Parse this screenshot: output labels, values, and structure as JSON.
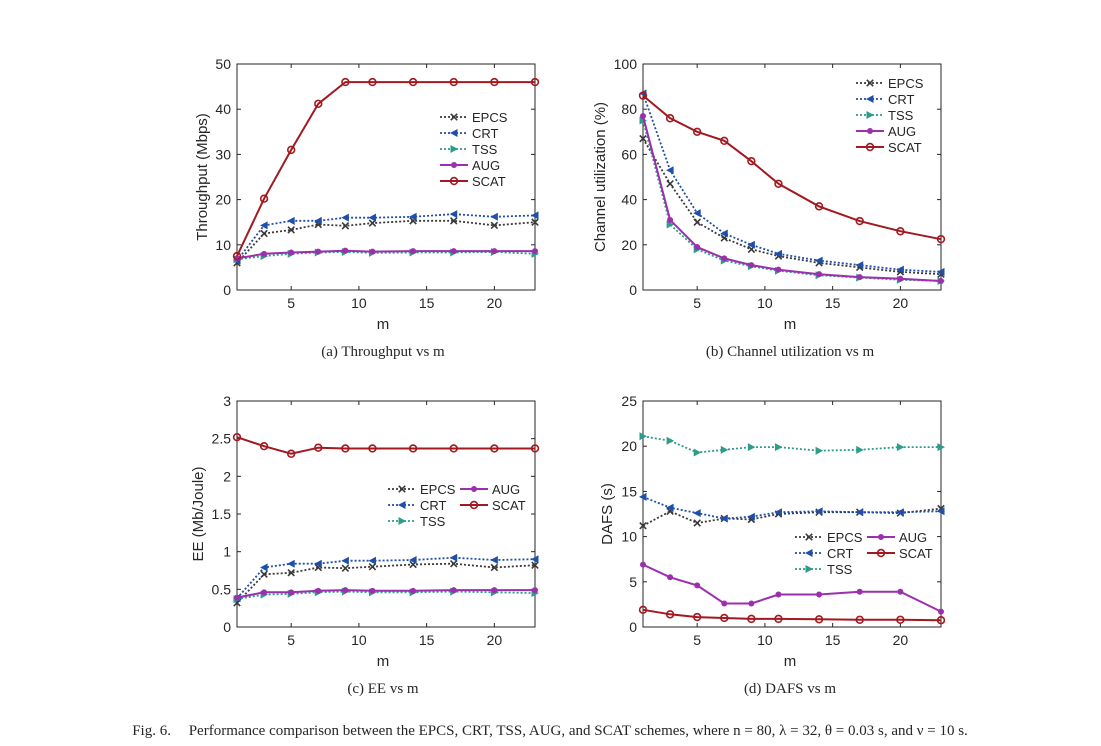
{
  "figure": {
    "caption_label": "Fig. 6.",
    "caption_text": "Performance comparison between the EPCS, CRT, TSS, AUG, and SCAT schemes, where n = 80, λ = 32, θ = 0.03 s, and ν = 10 s."
  },
  "series_styles": {
    "EPCS": {
      "color": "#3a3a3a",
      "dash": "dot",
      "marker": "x"
    },
    "CRT": {
      "color": "#1f4fa8",
      "dash": "dot",
      "marker": "tri-left"
    },
    "TSS": {
      "color": "#2e9c8a",
      "dash": "dot",
      "marker": "tri-right"
    },
    "AUG": {
      "color": "#9b2fae",
      "dash": "solid",
      "marker": "dot"
    },
    "SCAT": {
      "color": "#a2191f",
      "dash": "solid",
      "marker": "circle"
    }
  },
  "chart_data": [
    {
      "id": "a",
      "type": "line",
      "caption": "(a) Throughput vs m",
      "xlabel": "m",
      "ylabel": "Throughput (Mbps)",
      "xlim": [
        1,
        23
      ],
      "ylim": [
        0,
        50
      ],
      "xticks": [
        5,
        10,
        15,
        20
      ],
      "yticks": [
        0,
        10,
        20,
        30,
        40,
        50
      ],
      "ytick_labels": [
        "0",
        "10",
        "20",
        "30",
        "40",
        "50"
      ],
      "legend_layout": "single-column",
      "legend_position": "center-right",
      "x": [
        1,
        3,
        5,
        7,
        9,
        11,
        14,
        17,
        20,
        23
      ],
      "series": [
        {
          "name": "EPCS",
          "values": [
            6.0,
            12.5,
            13.3,
            14.5,
            14.2,
            14.8,
            15.3,
            15.3,
            14.3,
            15.0
          ]
        },
        {
          "name": "CRT",
          "values": [
            6.5,
            14.3,
            15.3,
            15.3,
            16.0,
            16.0,
            16.2,
            16.8,
            16.2,
            16.5
          ]
        },
        {
          "name": "TSS",
          "values": [
            6.8,
            7.5,
            8.0,
            8.3,
            8.4,
            8.2,
            8.3,
            8.3,
            8.4,
            8.0
          ]
        },
        {
          "name": "AUG",
          "values": [
            7.0,
            8.0,
            8.3,
            8.5,
            8.7,
            8.5,
            8.6,
            8.6,
            8.6,
            8.6
          ]
        },
        {
          "name": "SCAT",
          "values": [
            7.5,
            20.2,
            31.0,
            41.2,
            46.0,
            46.0,
            46.0,
            46.0,
            46.0,
            46.0
          ]
        }
      ]
    },
    {
      "id": "b",
      "type": "line",
      "caption": "(b) Channel utilization vs m",
      "xlabel": "m",
      "ylabel": "Channel utilization (%)",
      "xlim": [
        1,
        23
      ],
      "ylim": [
        0,
        100
      ],
      "xticks": [
        5,
        10,
        15,
        20
      ],
      "yticks": [
        0,
        20,
        40,
        60,
        80,
        100
      ],
      "ytick_labels": [
        "0",
        "20",
        "40",
        "60",
        "80",
        "100"
      ],
      "legend_layout": "single-column",
      "legend_position": "top-right",
      "x": [
        1,
        3,
        5,
        7,
        9,
        11,
        14,
        17,
        20,
        23
      ],
      "series": [
        {
          "name": "EPCS",
          "values": [
            67,
            47,
            30,
            23,
            18,
            15,
            12,
            10,
            8,
            7
          ]
        },
        {
          "name": "CRT",
          "values": [
            87,
            53,
            34,
            25,
            20,
            16,
            13,
            11,
            9,
            8
          ]
        },
        {
          "name": "TSS",
          "values": [
            75,
            29,
            18,
            13,
            10.5,
            8.5,
            6.5,
            5.5,
            4.5,
            4
          ]
        },
        {
          "name": "AUG",
          "values": [
            77,
            31,
            19,
            14,
            11,
            9,
            7,
            5.7,
            5,
            4
          ]
        },
        {
          "name": "SCAT",
          "values": [
            86,
            76,
            70,
            66,
            57,
            47,
            37,
            30.5,
            26,
            22.5
          ]
        }
      ]
    },
    {
      "id": "c",
      "type": "line",
      "caption": "(c) EE vs m",
      "xlabel": "m",
      "ylabel": "EE (Mb/Joule)",
      "xlim": [
        1,
        23
      ],
      "ylim": [
        0,
        3
      ],
      "xticks": [
        5,
        10,
        15,
        20
      ],
      "yticks": [
        0,
        0.5,
        1,
        1.5,
        2,
        2.5,
        3
      ],
      "ytick_labels": [
        "0",
        "0.5",
        "1",
        "1.5",
        "2",
        "2.5",
        "3"
      ],
      "legend_layout": "two-column",
      "legend_position": "center-right",
      "x": [
        1,
        3,
        5,
        7,
        9,
        11,
        14,
        17,
        20,
        23
      ],
      "series": [
        {
          "name": "EPCS",
          "values": [
            0.32,
            0.7,
            0.72,
            0.79,
            0.78,
            0.8,
            0.83,
            0.84,
            0.79,
            0.82
          ]
        },
        {
          "name": "CRT",
          "values": [
            0.38,
            0.79,
            0.84,
            0.84,
            0.88,
            0.88,
            0.89,
            0.92,
            0.89,
            0.9
          ]
        },
        {
          "name": "TSS",
          "values": [
            0.37,
            0.43,
            0.44,
            0.46,
            0.47,
            0.46,
            0.46,
            0.47,
            0.46,
            0.45
          ]
        },
        {
          "name": "AUG",
          "values": [
            0.39,
            0.46,
            0.46,
            0.48,
            0.49,
            0.48,
            0.48,
            0.49,
            0.49,
            0.49
          ]
        },
        {
          "name": "SCAT",
          "values": [
            2.52,
            2.4,
            2.3,
            2.38,
            2.37,
            2.37,
            2.37,
            2.37,
            2.37,
            2.37
          ]
        }
      ]
    },
    {
      "id": "d",
      "type": "line",
      "caption": "(d) DAFS vs m",
      "xlabel": "m",
      "ylabel": "DAFS (s)",
      "xlim": [
        1,
        23
      ],
      "ylim": [
        0,
        25
      ],
      "xticks": [
        5,
        10,
        15,
        20
      ],
      "yticks": [
        0,
        5,
        10,
        15,
        20,
        25
      ],
      "ytick_labels": [
        "0",
        "5",
        "10",
        "15",
        "20",
        "25"
      ],
      "legend_layout": "two-column",
      "legend_position": "center-right",
      "x": [
        1,
        3,
        5,
        7,
        9,
        11,
        14,
        17,
        20,
        23
      ],
      "series": [
        {
          "name": "EPCS",
          "values": [
            11.2,
            12.8,
            11.5,
            12.0,
            11.9,
            12.5,
            12.7,
            12.7,
            12.6,
            13.1
          ]
        },
        {
          "name": "CRT",
          "values": [
            14.4,
            13.2,
            12.6,
            12.0,
            12.2,
            12.7,
            12.8,
            12.7,
            12.7,
            12.8
          ]
        },
        {
          "name": "TSS",
          "values": [
            21.1,
            20.6,
            19.3,
            19.6,
            19.9,
            19.9,
            19.5,
            19.6,
            19.9,
            19.9
          ]
        },
        {
          "name": "AUG",
          "values": [
            6.9,
            5.5,
            4.6,
            2.6,
            2.6,
            3.6,
            3.6,
            3.9,
            3.9,
            1.7
          ]
        },
        {
          "name": "SCAT",
          "values": [
            1.9,
            1.4,
            1.1,
            1.0,
            0.9,
            0.9,
            0.85,
            0.8,
            0.8,
            0.75
          ]
        }
      ]
    }
  ]
}
